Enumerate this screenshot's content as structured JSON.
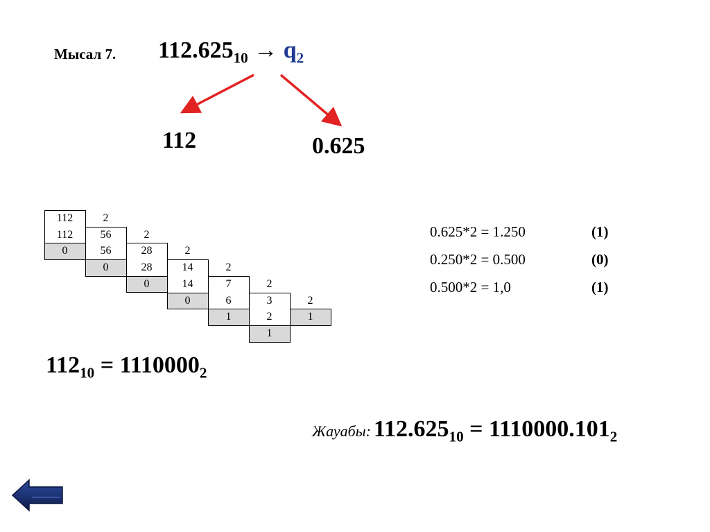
{
  "title": {
    "label": "Мысал 7.",
    "number": "112.625",
    "base_from": "10",
    "arrow": "→",
    "target": "q",
    "base_to": "2"
  },
  "split": {
    "integer": "112",
    "fraction": "0.625"
  },
  "division_table": {
    "columns": [
      {
        "divisor": "",
        "values": [
          "112",
          "112",
          "0"
        ]
      },
      {
        "divisor": "2",
        "values": [
          "56",
          "56",
          "0"
        ]
      },
      {
        "divisor": "2",
        "values": [
          "28",
          "28",
          "0"
        ]
      },
      {
        "divisor": "2",
        "values": [
          "14",
          "14",
          "0"
        ]
      },
      {
        "divisor": "2",
        "values": [
          "7",
          "6",
          "1"
        ]
      },
      {
        "divisor": "2",
        "values": [
          "3",
          "2",
          "1"
        ]
      },
      {
        "divisor": "2",
        "values": [
          "1"
        ]
      }
    ]
  },
  "integer_result": {
    "left": "112",
    "left_base": "10",
    "eq": " = ",
    "right": "1110000",
    "right_base": "2"
  },
  "fraction_steps": [
    {
      "expr": "0.625*2 = 1.250",
      "digit": "(1)"
    },
    {
      "expr": "0.250*2 = 0.500",
      "digit": "(0)"
    },
    {
      "expr": "0.500*2 = 1,0",
      "digit": "(1)"
    }
  ],
  "answer": {
    "label": "Жауабы:",
    "left": "112.625",
    "left_base": "10",
    "eq": " = ",
    "right": "1110000.101",
    "right_base": "2"
  },
  "nav": {
    "back_icon": "left-arrow-icon",
    "color": "#1a2f6e"
  }
}
